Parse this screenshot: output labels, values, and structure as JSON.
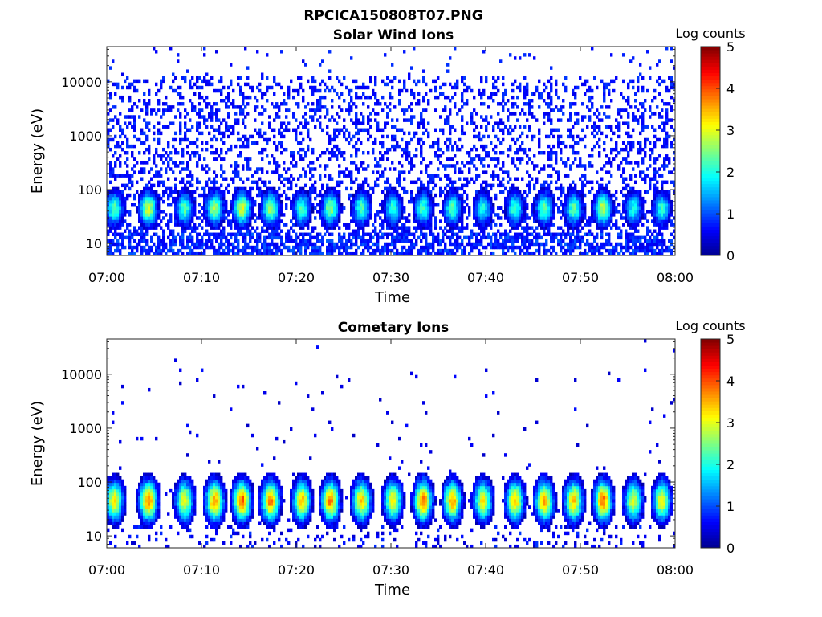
{
  "figure_title": "RPCICA150808T07.PNG",
  "colorbar": {
    "label": "Log counts",
    "range": [
      0,
      5
    ],
    "ticks": [
      "0",
      "1",
      "2",
      "3",
      "4",
      "5"
    ],
    "colormap": "jet",
    "colors": [
      "#00008f",
      "#0000ff",
      "#0080ff",
      "#00ffff",
      "#80ff80",
      "#ffff00",
      "#ff8000",
      "#ff0000",
      "#800000"
    ]
  },
  "chart_data": [
    {
      "type": "heatmap",
      "title": "Solar Wind Ions",
      "xlabel": "Time",
      "ylabel": "Energy (eV)",
      "x_range": [
        "07:00",
        "08:00"
      ],
      "x_ticks": [
        "07:00",
        "07:10",
        "07:20",
        "07:30",
        "07:40",
        "07:50",
        "08:00"
      ],
      "y_scale": "log",
      "y_range": [
        6,
        45000
      ],
      "y_ticks": [
        "10",
        "100",
        "1000",
        "10000"
      ],
      "z_label": "Log counts",
      "z_range": [
        0,
        5
      ],
      "peak_energy_eV": 45,
      "burst_times_min": [
        0.8,
        4.4,
        8.2,
        11.4,
        14.3,
        17.3,
        20.6,
        23.6,
        26.9,
        30.2,
        33.4,
        36.5,
        39.7,
        43.1,
        46.2,
        49.3,
        52.4,
        55.6,
        58.6
      ],
      "burst_peak_log_counts": [
        2.4,
        2.9,
        2.3,
        2.7,
        3.0,
        2.7,
        2.2,
        2.6,
        2.3,
        2.1,
        2.2,
        2.3,
        2.0,
        2.2,
        2.4,
        2.4,
        2.9,
        2.0,
        2.1
      ],
      "background_log_counts": 0.5,
      "background_max_energy_eV": 13000
    },
    {
      "type": "heatmap",
      "title": "Cometary Ions",
      "xlabel": "Time",
      "ylabel": "Energy (eV)",
      "x_range": [
        "07:00",
        "08:00"
      ],
      "x_ticks": [
        "07:00",
        "07:10",
        "07:20",
        "07:30",
        "07:40",
        "07:50",
        "08:00"
      ],
      "y_scale": "log",
      "y_range": [
        6,
        45000
      ],
      "y_ticks": [
        "10",
        "100",
        "1000",
        "10000"
      ],
      "z_label": "Log counts",
      "z_range": [
        0,
        5
      ],
      "peak_energy_eV": 45,
      "burst_times_min": [
        0.8,
        4.4,
        8.2,
        11.4,
        14.3,
        17.3,
        20.6,
        23.6,
        26.9,
        30.2,
        33.4,
        36.5,
        39.7,
        43.1,
        46.2,
        49.3,
        52.4,
        55.6,
        58.6
      ],
      "burst_peak_log_counts": [
        3.3,
        3.8,
        3.1,
        3.7,
        4.0,
        3.8,
        3.4,
        3.8,
        3.5,
        3.2,
        3.9,
        3.6,
        3.2,
        3.4,
        3.6,
        3.5,
        3.9,
        3.0,
        3.2
      ],
      "background_log_counts": 0.3,
      "background_max_energy_eV": 12000
    }
  ]
}
